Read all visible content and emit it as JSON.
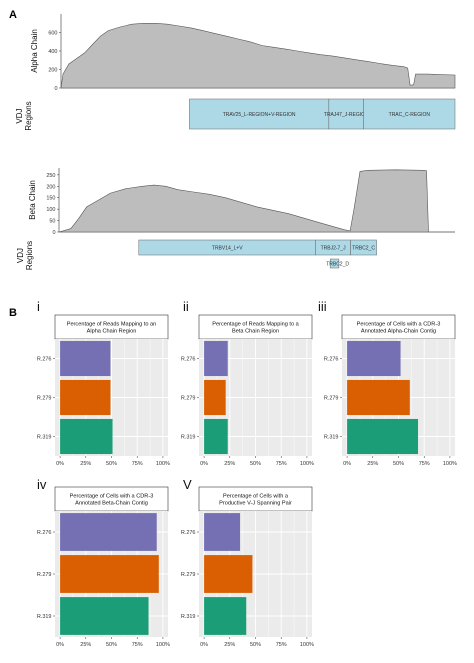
{
  "panel_labels": {
    "a": "A",
    "b": "B"
  },
  "roman": [
    "i",
    "ii",
    "iii",
    "iv",
    "V"
  ],
  "chart_data": [
    {
      "type": "area",
      "ylabel": "Alpha Chain",
      "ylim": [
        0,
        800
      ],
      "yticks": [
        0,
        200,
        400,
        600
      ],
      "grid": false,
      "profile": [
        [
          0,
          0
        ],
        [
          0.5,
          150
        ],
        [
          2,
          260
        ],
        [
          4,
          320
        ],
        [
          6,
          380
        ],
        [
          8,
          470
        ],
        [
          10,
          560
        ],
        [
          12,
          620
        ],
        [
          15,
          660
        ],
        [
          18,
          690
        ],
        [
          21,
          700
        ],
        [
          24,
          700
        ],
        [
          27,
          690
        ],
        [
          30,
          670
        ],
        [
          33,
          650
        ],
        [
          36,
          620
        ],
        [
          39,
          590
        ],
        [
          42,
          560
        ],
        [
          45,
          530
        ],
        [
          48,
          500
        ],
        [
          51,
          460
        ],
        [
          54,
          440
        ],
        [
          57,
          420
        ],
        [
          60,
          400
        ],
        [
          63,
          380
        ],
        [
          66,
          360
        ],
        [
          69,
          345
        ],
        [
          72,
          325
        ],
        [
          75,
          305
        ],
        [
          78,
          285
        ],
        [
          81,
          265
        ],
        [
          84,
          245
        ],
        [
          87,
          230
        ],
        [
          88,
          215
        ],
        [
          88.6,
          30
        ],
        [
          89.5,
          35
        ],
        [
          90,
          150
        ],
        [
          93,
          150
        ],
        [
          96,
          145
        ],
        [
          100,
          140
        ]
      ],
      "regions_label": "VDJ\nRegions",
      "regions": [
        {
          "label": "TRAV25_L-REGION+V-REGION",
          "start": 0.2,
          "end": 0.62
        },
        {
          "label": "TRAJ47_J-REGION",
          "start": 0.62,
          "end": 0.725
        },
        {
          "label": "TRAC_C-REGION",
          "start": 0.725,
          "end": 1.0
        }
      ]
    },
    {
      "type": "area",
      "ylabel": "Beta Chain",
      "ylim": [
        0,
        280
      ],
      "yticks": [
        0,
        50,
        100,
        150,
        200,
        250
      ],
      "grid": false,
      "profile": [
        [
          0,
          0
        ],
        [
          1,
          5
        ],
        [
          3,
          15
        ],
        [
          5,
          60
        ],
        [
          7,
          110
        ],
        [
          10,
          140
        ],
        [
          13,
          170
        ],
        [
          17,
          190
        ],
        [
          21,
          200
        ],
        [
          24,
          205
        ],
        [
          27,
          200
        ],
        [
          30,
          185
        ],
        [
          34,
          175
        ],
        [
          38,
          165
        ],
        [
          42,
          150
        ],
        [
          46,
          130
        ],
        [
          50,
          110
        ],
        [
          54,
          95
        ],
        [
          58,
          80
        ],
        [
          62,
          60
        ],
        [
          66,
          40
        ],
        [
          70,
          20
        ],
        [
          72,
          10
        ],
        [
          73.5,
          5
        ],
        [
          74.5,
          100
        ],
        [
          76,
          265
        ],
        [
          78,
          270
        ],
        [
          85,
          272
        ],
        [
          92,
          270
        ],
        [
          92.8,
          268
        ],
        [
          93.3,
          0
        ],
        [
          100,
          0
        ]
      ],
      "regions_label": "VDJ\nRegions",
      "regions": [
        {
          "label": "TRBV14_L+V",
          "start": 0.12,
          "end": 0.73,
          "row": 0
        },
        {
          "label": "TRBJ2-7_J",
          "start": 0.73,
          "end": 0.85,
          "row": 0
        },
        {
          "label": "TRBC2_C",
          "start": 0.85,
          "end": 0.94,
          "row": 0
        },
        {
          "label": "TRBC2_D",
          "start": 0.78,
          "end": 0.81,
          "row": 1
        }
      ]
    },
    {
      "type": "bar",
      "orientation": "horizontal",
      "title": "Percentage of Reads Mapping to an\nAlpha Chain Region",
      "categories": [
        "R.276",
        "R.279",
        "R.319"
      ],
      "values": [
        0.49,
        0.49,
        0.51
      ],
      "xlim": [
        0,
        1
      ],
      "xticks": [
        "0%",
        "25%",
        "50%",
        "75%",
        "100%"
      ],
      "grid": true
    },
    {
      "type": "bar",
      "orientation": "horizontal",
      "title": "Percentage of Reads Mapping to a\nBeta Chain Region",
      "categories": [
        "R.276",
        "R.279",
        "R.319"
      ],
      "values": [
        0.23,
        0.21,
        0.23
      ],
      "xlim": [
        0,
        1
      ],
      "xticks": [
        "0%",
        "25%",
        "50%",
        "75%",
        "100%"
      ],
      "grid": true
    },
    {
      "type": "bar",
      "orientation": "horizontal",
      "title": "Percentage of Cells with a CDR-3\nAnnotated Alpha-Chain Contig",
      "categories": [
        "R.276",
        "R.279",
        "R.319"
      ],
      "values": [
        0.52,
        0.61,
        0.69
      ],
      "xlim": [
        0,
        1
      ],
      "xticks": [
        "0%",
        "25%",
        "50%",
        "75%",
        "100%"
      ],
      "grid": true
    },
    {
      "type": "bar",
      "orientation": "horizontal",
      "title": "Percentage of Cells with a CDR-3\nAnnotated Beta-Chain Contig",
      "categories": [
        "R.276",
        "R.279",
        "R.319"
      ],
      "values": [
        0.94,
        0.96,
        0.86
      ],
      "xlim": [
        0,
        1
      ],
      "xticks": [
        "0%",
        "25%",
        "50%",
        "75%",
        "100%"
      ],
      "grid": true
    },
    {
      "type": "bar",
      "orientation": "horizontal",
      "title": "Percentage of Cells with a\nProductive V-J Spanning Pair",
      "categories": [
        "R.276",
        "R.279",
        "R.319"
      ],
      "values": [
        0.35,
        0.47,
        0.41
      ],
      "xlim": [
        0,
        1
      ],
      "xticks": [
        "0%",
        "25%",
        "50%",
        "75%",
        "100%"
      ],
      "grid": true
    }
  ],
  "colors": {
    "area_fill": "#bdbdbd",
    "area_line": "#555555",
    "region_fill": "#add8e6",
    "region_stroke": "#666666",
    "panel_bg": "#ebebeb",
    "grid": "#ffffff",
    "strip_bg": "#ffffff",
    "bars": [
      "#7570b3",
      "#d95f02",
      "#1b9e77"
    ]
  }
}
